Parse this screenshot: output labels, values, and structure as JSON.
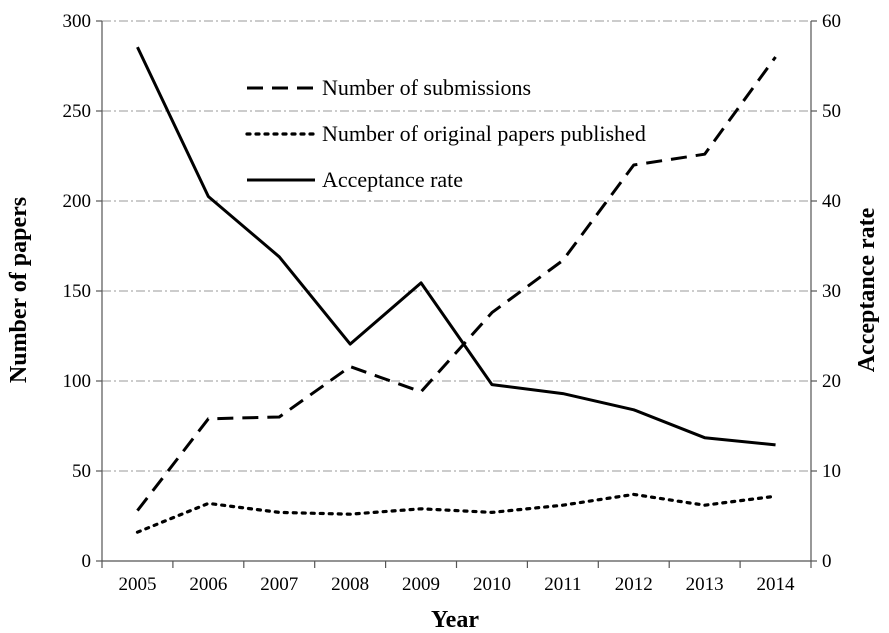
{
  "chart_data": {
    "type": "line",
    "title": "",
    "xlabel": "Year",
    "ylabel": "Number of papers",
    "y2label": "Acceptance rate",
    "categories": [
      "2005",
      "2006",
      "2007",
      "2008",
      "2009",
      "2010",
      "2011",
      "2012",
      "2013",
      "2014"
    ],
    "ylim": [
      0,
      300
    ],
    "y_ticks": [
      "0",
      "50",
      "100",
      "150",
      "200",
      "250",
      "300"
    ],
    "y2lim": [
      0,
      60
    ],
    "y2_ticks": [
      "0",
      "10",
      "20",
      "30",
      "40",
      "50",
      "60"
    ],
    "grid": "horizontal dash-dot",
    "legend_position": "top-center",
    "series": [
      {
        "name": "Number of submissions",
        "axis": "left",
        "line_style": "dashed",
        "values": [
          28,
          79,
          80,
          108,
          94,
          138,
          167,
          220,
          226,
          280
        ]
      },
      {
        "name": "Number of original papers published",
        "axis": "left",
        "line_style": "dotted",
        "values": [
          16,
          32,
          27,
          26,
          29,
          27,
          31,
          37,
          31,
          36
        ]
      },
      {
        "name": "Acceptance rate",
        "axis": "right",
        "line_style": "solid",
        "values": [
          57.1,
          40.5,
          33.8,
          24.1,
          30.9,
          19.6,
          18.6,
          16.8,
          13.7,
          12.9
        ]
      }
    ],
    "colors": {
      "line": "#000000",
      "grid": "#9a9a9a",
      "axis": "#555555"
    }
  }
}
